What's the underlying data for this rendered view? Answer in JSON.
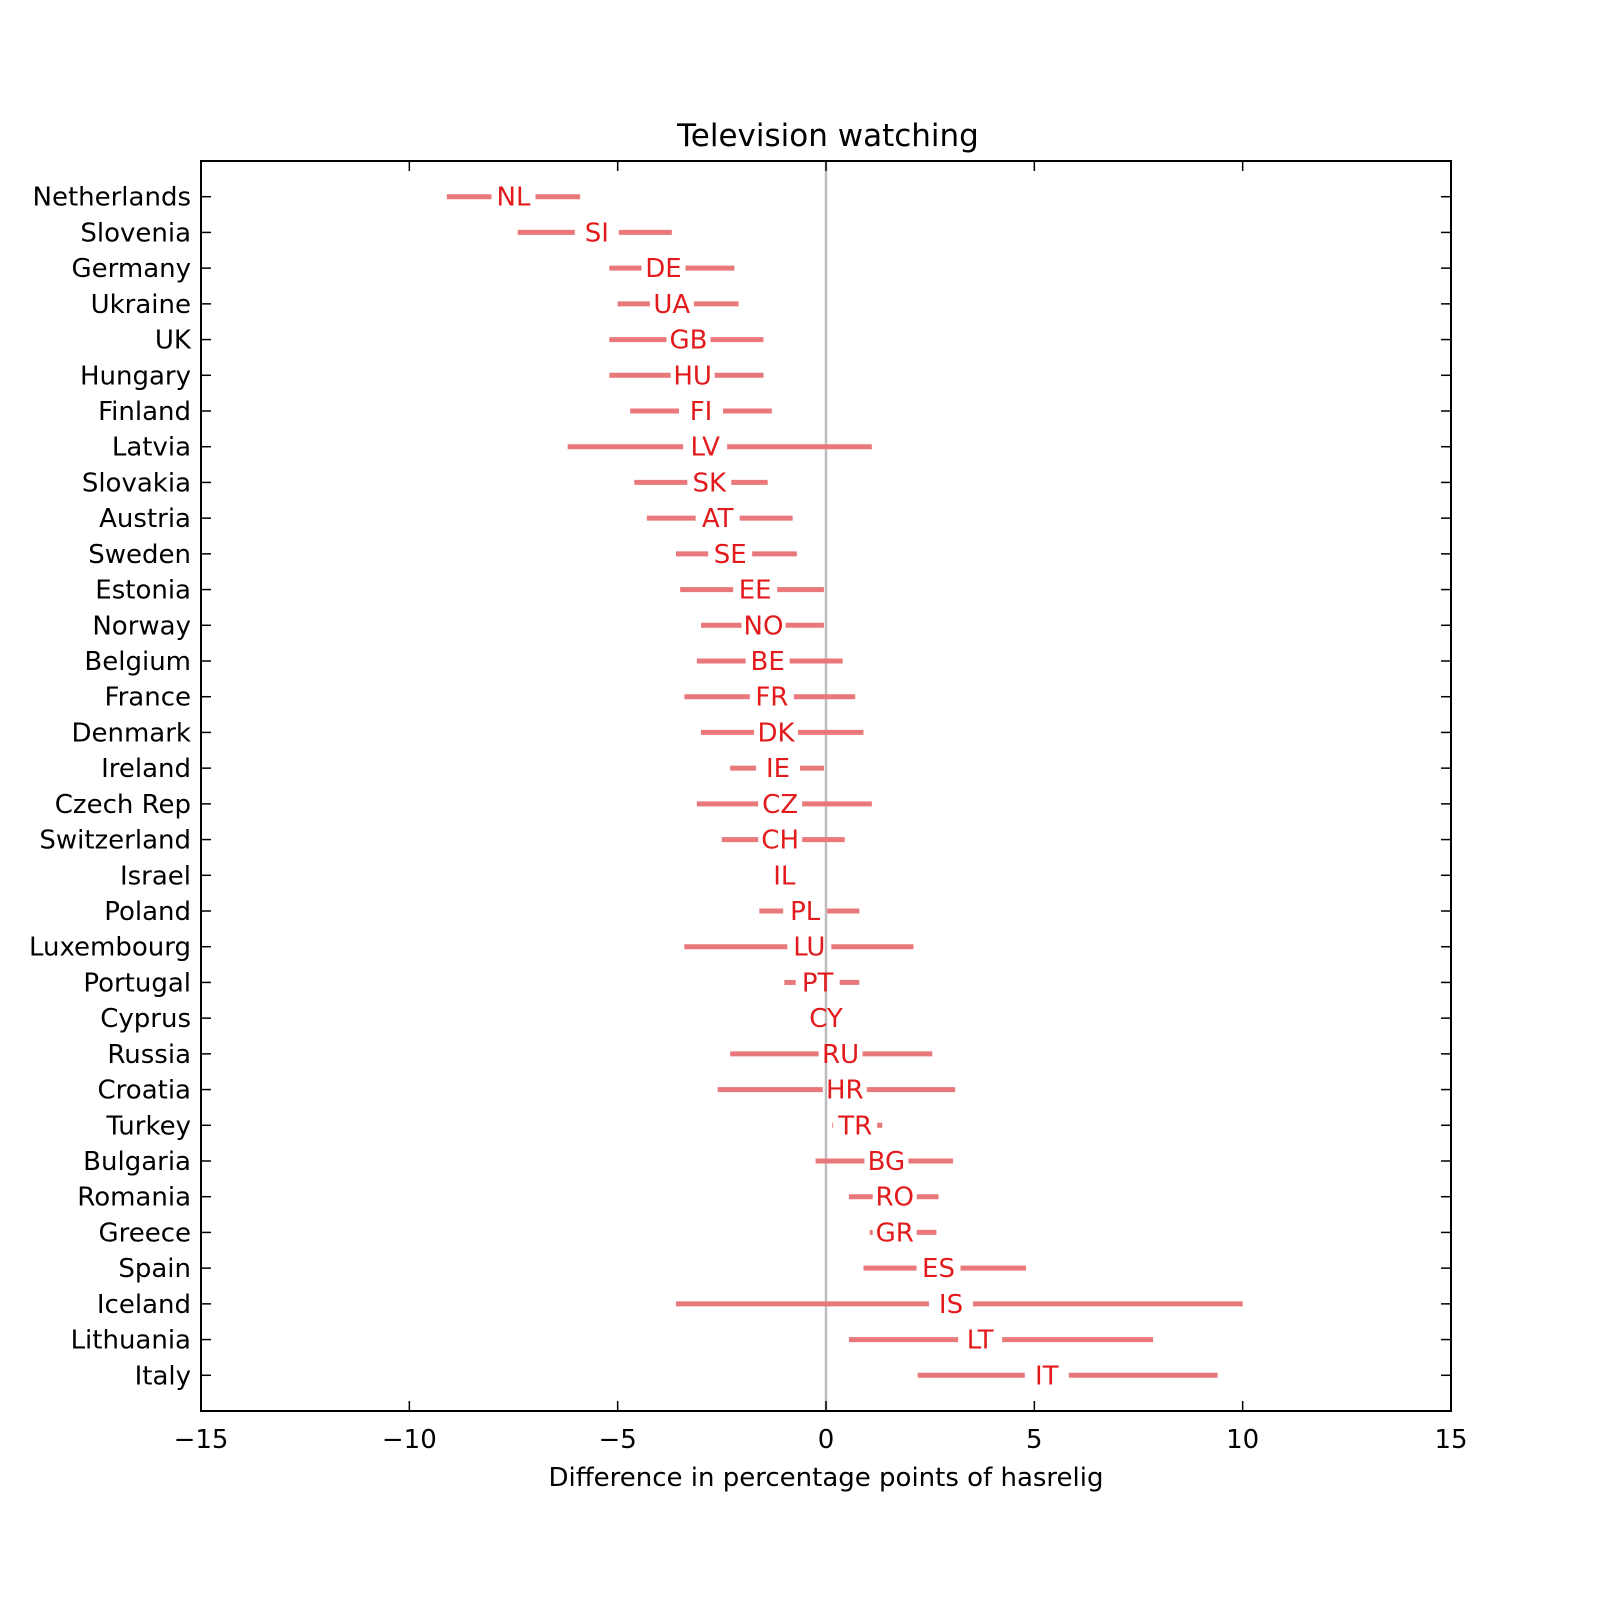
{
  "chart_data": {
    "type": "errorbar",
    "title": "Television watching",
    "xlabel": "Difference in percentage points of hasrelig",
    "ylabel": "",
    "xlim": [
      -15,
      15
    ],
    "xticks": [
      -15,
      -10,
      -5,
      0,
      5,
      10,
      15
    ],
    "xtick_labels": [
      "−15",
      "−10",
      "−5",
      "0",
      "5",
      "10",
      "15"
    ],
    "reference_line": 0,
    "colors": {
      "interval": "#e8787a",
      "code": "#e31a1c",
      "zero_line": "#bdbdbd"
    },
    "rows": [
      {
        "country": "Netherlands",
        "code": "NL",
        "center": -7.5,
        "low": -9.1,
        "high": -5.9
      },
      {
        "country": "Slovenia",
        "code": "SI",
        "center": -5.5,
        "low": -7.4,
        "high": -3.7
      },
      {
        "country": "Germany",
        "code": "DE",
        "center": -3.9,
        "low": -5.2,
        "high": -2.2
      },
      {
        "country": "Ukraine",
        "code": "UA",
        "center": -3.7,
        "low": -5.0,
        "high": -2.1
      },
      {
        "country": "UK",
        "code": "GB",
        "center": -3.3,
        "low": -5.2,
        "high": -1.5
      },
      {
        "country": "Hungary",
        "code": "HU",
        "center": -3.2,
        "low": -5.2,
        "high": -1.5
      },
      {
        "country": "Finland",
        "code": "FI",
        "center": -3.0,
        "low": -4.7,
        "high": -1.3
      },
      {
        "country": "Latvia",
        "code": "LV",
        "center": -2.9,
        "low": -6.2,
        "high": 1.1
      },
      {
        "country": "Slovakia",
        "code": "SK",
        "center": -2.8,
        "low": -4.6,
        "high": -1.4
      },
      {
        "country": "Austria",
        "code": "AT",
        "center": -2.6,
        "low": -4.3,
        "high": -0.8
      },
      {
        "country": "Sweden",
        "code": "SE",
        "center": -2.3,
        "low": -3.6,
        "high": -0.7
      },
      {
        "country": "Estonia",
        "code": "EE",
        "center": -1.7,
        "low": -3.5,
        "high": -0.05
      },
      {
        "country": "Norway",
        "code": "NO",
        "center": -1.5,
        "low": -3.0,
        "high": -0.05
      },
      {
        "country": "Belgium",
        "code": "BE",
        "center": -1.4,
        "low": -3.1,
        "high": 0.4
      },
      {
        "country": "France",
        "code": "FR",
        "center": -1.3,
        "low": -3.4,
        "high": 0.7
      },
      {
        "country": "Denmark",
        "code": "DK",
        "center": -1.2,
        "low": -3.0,
        "high": 0.9
      },
      {
        "country": "Ireland",
        "code": "IE",
        "center": -1.15,
        "low": -2.3,
        "high": -0.05
      },
      {
        "country": "Czech Rep",
        "code": "CZ",
        "center": -1.1,
        "low": -3.1,
        "high": 1.1
      },
      {
        "country": "Switzerland",
        "code": "CH",
        "center": -1.1,
        "low": -2.5,
        "high": 0.45
      },
      {
        "country": "Israel",
        "code": "IL",
        "center": -1.0,
        "low": -1.0,
        "high": -1.0
      },
      {
        "country": "Poland",
        "code": "PL",
        "center": -0.5,
        "low": -1.6,
        "high": 0.8
      },
      {
        "country": "Luxembourg",
        "code": "LU",
        "center": -0.4,
        "low": -3.4,
        "high": 2.1
      },
      {
        "country": "Portugal",
        "code": "PT",
        "center": -0.2,
        "low": -1.0,
        "high": 0.8
      },
      {
        "country": "Cyprus",
        "code": "CY",
        "center": 0.0,
        "low": 0.0,
        "high": 0.0
      },
      {
        "country": "Russia",
        "code": "RU",
        "center": 0.35,
        "low": -2.3,
        "high": 2.55
      },
      {
        "country": "Croatia",
        "code": "HR",
        "center": 0.45,
        "low": -2.6,
        "high": 3.1
      },
      {
        "country": "Turkey",
        "code": "TR",
        "center": 0.7,
        "low": 0.15,
        "high": 1.35
      },
      {
        "country": "Bulgaria",
        "code": "BG",
        "center": 1.45,
        "low": -0.25,
        "high": 3.05
      },
      {
        "country": "Romania",
        "code": "RO",
        "center": 1.65,
        "low": 0.55,
        "high": 2.7
      },
      {
        "country": "Greece",
        "code": "GR",
        "center": 1.65,
        "low": 1.05,
        "high": 2.65
      },
      {
        "country": "Spain",
        "code": "ES",
        "center": 2.7,
        "low": 0.9,
        "high": 4.8
      },
      {
        "country": "Iceland",
        "code": "IS",
        "center": 3.0,
        "low": -3.6,
        "high": 10.0
      },
      {
        "country": "Lithuania",
        "code": "LT",
        "center": 3.7,
        "low": 0.55,
        "high": 7.85
      },
      {
        "country": "Italy",
        "code": "IT",
        "center": 5.3,
        "low": 2.2,
        "high": 9.4
      }
    ]
  }
}
